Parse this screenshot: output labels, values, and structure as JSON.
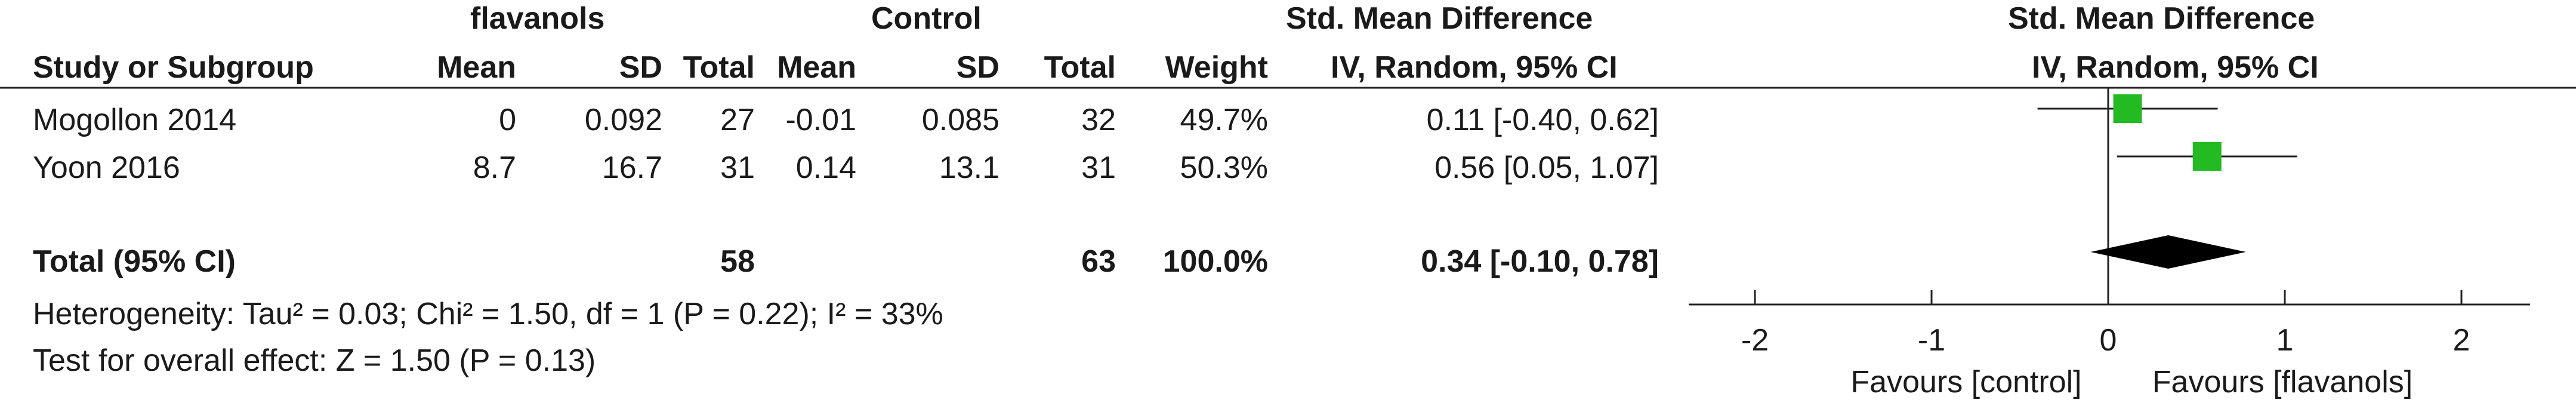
{
  "header": {
    "group1": "flavanols",
    "group2": "Control",
    "smd_title_left": "Std. Mean Difference",
    "smd_title_right": "Std. Mean Difference",
    "col_study": "Study or Subgroup",
    "col_mean1": "Mean",
    "col_sd1": "SD",
    "col_total1": "Total",
    "col_mean2": "Mean",
    "col_sd2": "SD",
    "col_total2": "Total",
    "col_weight": "Weight",
    "col_method_left": "IV, Random, 95% CI",
    "col_method_right": "IV, Random, 95% CI"
  },
  "studies": [
    {
      "name": "Mogollon 2014",
      "mean1": "0",
      "sd1": "0.092",
      "total1": "27",
      "mean2": "-0.01",
      "sd2": "0.085",
      "total2": "32",
      "weight": "49.7%",
      "ci_text": "0.11 [-0.40, 0.62]"
    },
    {
      "name": "Yoon 2016",
      "mean1": "8.7",
      "sd1": "16.7",
      "total1": "31",
      "mean2": "0.14",
      "sd2": "13.1",
      "total2": "31",
      "weight": "50.3%",
      "ci_text": "0.56 [0.05, 1.07]"
    }
  ],
  "total": {
    "label": "Total (95% CI)",
    "total1": "58",
    "total2": "63",
    "weight": "100.0%",
    "ci_text": "0.34 [-0.10, 0.78]"
  },
  "heterogeneity": "Heterogeneity: Tau² = 0.03; Chi² = 1.50, df = 1 (P = 0.22); I² = 33%",
  "overall_effect": "Test for overall effect: Z = 1.50 (P = 0.13)",
  "colors": {
    "marker": "#22bb22",
    "diamond": "#000000",
    "line": "#222222"
  },
  "chart_data": {
    "type": "scatter",
    "subtype": "forest-plot",
    "studies": [
      {
        "name": "Mogollon 2014",
        "estimate": 0.11,
        "ci_low": -0.4,
        "ci_high": 0.62,
        "weight": 49.7
      },
      {
        "name": "Yoon 2016",
        "estimate": 0.56,
        "ci_low": 0.05,
        "ci_high": 1.07,
        "weight": 50.3
      }
    ],
    "pooled": {
      "estimate": 0.34,
      "ci_low": -0.1,
      "ci_high": 0.78
    },
    "xlim": [
      -2.2,
      2.2
    ],
    "x_ticks": [
      -2,
      -1,
      0,
      1,
      2
    ],
    "x_tick_labels": [
      "-2",
      "-1",
      "0",
      "1",
      "2"
    ],
    "favours_left": "Favours [control]",
    "favours_right": "Favours [flavanols]"
  }
}
